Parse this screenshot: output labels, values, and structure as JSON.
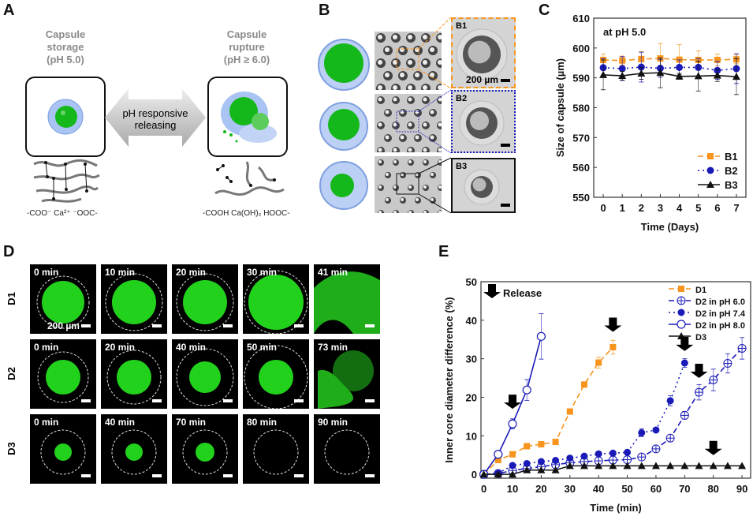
{
  "panels": {
    "A": {
      "label": "A",
      "left_title": "Capsule\nstorage\n(pH 5.0)",
      "right_title": "Capsule\nrupture\n(pH ≥ 6.0)",
      "arrow_text": "pH responsive\nreleasing",
      "left_chem": "-COO⁻ Ca²⁺ ⁻OOC-",
      "right_chem": "-COOH  Ca(OH)₂  HOOC-"
    },
    "B": {
      "label": "B",
      "insets": [
        "B1",
        "B2",
        "B3"
      ],
      "scale_text": "200 µm",
      "colors": [
        "#f7941d",
        "#1a1ab8",
        "#111111"
      ]
    },
    "C": {
      "label": "C"
    },
    "D": {
      "label": "D",
      "scale_text": "200 µm",
      "rows": [
        {
          "name": "D1",
          "times": [
            "0 min",
            "10 min",
            "20 min",
            "30 min",
            "41 min"
          ]
        },
        {
          "name": "D2",
          "times": [
            "0 min",
            "20 min",
            "40 min",
            "50 min",
            "73 min"
          ]
        },
        {
          "name": "D3",
          "times": [
            "0 min",
            "40 min",
            "70 min",
            "80 min",
            "90 min"
          ]
        }
      ],
      "fluor_color": "#22d11c"
    },
    "E": {
      "label": "E"
    }
  },
  "chart_data": [
    {
      "id": "C",
      "type": "line",
      "annotation": "at pH 5.0",
      "xlabel": "Time (Days)",
      "ylabel": "Size of capsule (µm)",
      "x": [
        0,
        1,
        2,
        3,
        4,
        5,
        6,
        7
      ],
      "xlim": [
        -0.5,
        7.5
      ],
      "ylim": [
        550,
        610
      ],
      "yticks": [
        550,
        560,
        570,
        580,
        590,
        600,
        610
      ],
      "legend": "bottom-right",
      "grid": false,
      "series": [
        {
          "name": "B1",
          "color": "#f7941d",
          "marker": "square",
          "dash": "dashed",
          "values": [
            596,
            595.8,
            596.3,
            596.5,
            596.1,
            596,
            596,
            596.2
          ],
          "err": [
            2,
            1.5,
            2.5,
            5,
            5,
            3,
            2,
            1.5
          ]
        },
        {
          "name": "B2",
          "color": "#1a1ab8",
          "marker": "circle",
          "dash": "dotted",
          "values": [
            593.4,
            593.1,
            593.6,
            593.2,
            593.5,
            593.5,
            592.5,
            593.1
          ],
          "err": [
            3,
            4,
            5,
            3,
            2.5,
            3,
            3,
            5
          ]
        },
        {
          "name": "B3",
          "color": "#111111",
          "marker": "triangle",
          "dash": "solid",
          "values": [
            591,
            590.7,
            591.5,
            591.7,
            590.5,
            590.6,
            590.8,
            590.4
          ],
          "err": [
            5,
            1.5,
            2,
            5,
            1,
            5,
            2,
            6
          ]
        }
      ]
    },
    {
      "id": "E",
      "type": "line",
      "xlabel": "Time (min)",
      "ylabel": "Inner core diameter difference (%)",
      "xlim": [
        -1,
        93
      ],
      "ylim": [
        -1,
        50
      ],
      "xticks": [
        0,
        10,
        20,
        30,
        40,
        50,
        60,
        70,
        80,
        90
      ],
      "yticks": [
        0,
        10,
        20,
        30,
        40,
        50
      ],
      "legend": "top-right",
      "grid": false,
      "release_label": "Release",
      "release_x": [
        10,
        45,
        70,
        75,
        80
      ],
      "release_y": [
        17,
        37,
        32,
        25,
        5
      ],
      "series": [
        {
          "name": "D1",
          "color": "#f7941d",
          "marker": "square",
          "dash": "dashed",
          "x": [
            0,
            5,
            10,
            15,
            20,
            25,
            30,
            35,
            40,
            45
          ],
          "values": [
            0,
            3.7,
            5.2,
            7.3,
            7.8,
            8.4,
            16.3,
            23.3,
            29,
            33
          ],
          "err": [
            0,
            0.3,
            0.3,
            0.4,
            0.4,
            0.4,
            0.5,
            0.6,
            1.4,
            1.8
          ]
        },
        {
          "name": "D2 in pH 6.0",
          "color": "#1a1ab8",
          "marker": "crossed-circle",
          "dash": "dashed",
          "x": [
            0,
            5,
            10,
            15,
            20,
            25,
            30,
            35,
            40,
            45,
            50,
            55,
            60,
            65,
            70,
            75,
            80,
            85,
            90
          ],
          "values": [
            0,
            0.2,
            1,
            1.5,
            2,
            2.5,
            3,
            3.3,
            3.5,
            3.7,
            3.8,
            4.5,
            6.6,
            9.4,
            15.3,
            21.3,
            24.5,
            28.8,
            32.7
          ],
          "err": [
            0,
            0.2,
            0.3,
            0.3,
            0.3,
            0.3,
            0.3,
            0.3,
            0.3,
            0.3,
            0.3,
            0.4,
            0.6,
            0.8,
            1,
            2,
            2.8,
            2.5,
            2.8
          ]
        },
        {
          "name": "D2 in pH 7.4",
          "color": "#1a1ab8",
          "marker": "circle",
          "dash": "dotted",
          "x": [
            0,
            5,
            10,
            15,
            20,
            25,
            30,
            35,
            40,
            45,
            50,
            55,
            60,
            65,
            70
          ],
          "values": [
            0,
            0.3,
            2.3,
            2.8,
            3.3,
            3.6,
            4.2,
            4.7,
            5.3,
            5.5,
            5.7,
            10.8,
            11.5,
            19.1,
            28.9
          ],
          "err": [
            0,
            0.2,
            0.3,
            0.3,
            0.3,
            0.3,
            0.3,
            0.3,
            0.3,
            0.3,
            0.3,
            1,
            0.5,
            1.3,
            1.1
          ]
        },
        {
          "name": "D2 in pH 8.0",
          "color": "#1a1ab8",
          "marker": "open-circle",
          "dash": "solid",
          "x": [
            0,
            5,
            10,
            15,
            20
          ],
          "values": [
            0,
            5.2,
            13.1,
            21.9,
            35.8
          ],
          "err": [
            0,
            0.3,
            1.3,
            2.7,
            5.9
          ]
        },
        {
          "name": "D3",
          "color": "#111111",
          "marker": "triangle",
          "dash": "solid",
          "x": [
            0,
            5,
            10,
            15,
            20,
            25,
            30,
            35,
            40,
            45,
            50,
            55,
            60,
            65,
            70,
            75,
            80,
            85,
            90
          ],
          "values": [
            0,
            0,
            0,
            1.1,
            1.1,
            1.1,
            2.2,
            2.2,
            2.2,
            2.2,
            2.2,
            2.2,
            2.2,
            2.2,
            2.2,
            2.2,
            2.2,
            2.2,
            2.2
          ],
          "err": [
            0,
            0,
            0,
            0,
            0,
            0,
            0,
            0,
            0,
            0,
            0,
            0,
            0,
            0,
            0,
            0,
            0,
            0,
            0
          ]
        }
      ]
    }
  ]
}
